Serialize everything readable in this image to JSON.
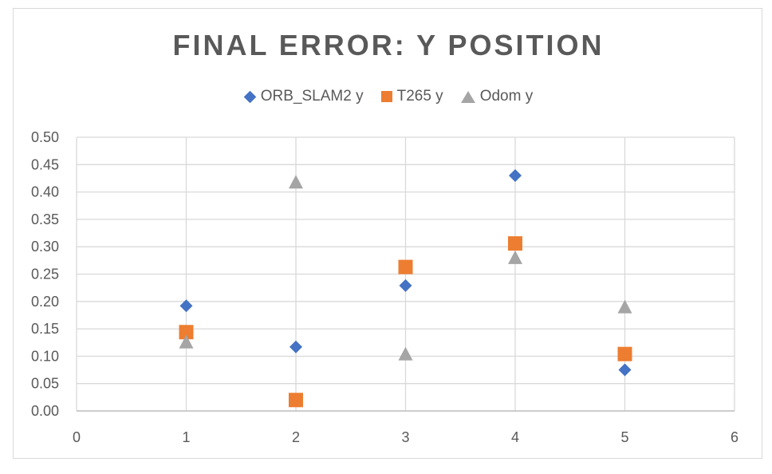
{
  "chart_data": {
    "type": "scatter",
    "title": "FINAL ERROR: Y POSITION",
    "xlabel": "",
    "ylabel": "",
    "xlim": [
      0,
      6
    ],
    "ylim": [
      0,
      0.5
    ],
    "x_ticks": [
      "0",
      "1",
      "2",
      "3",
      "4",
      "5",
      "6"
    ],
    "y_ticks": [
      "0.00",
      "0.05",
      "0.10",
      "0.15",
      "0.20",
      "0.25",
      "0.30",
      "0.35",
      "0.40",
      "0.45",
      "0.50"
    ],
    "grid": true,
    "legend_position": "top",
    "series": [
      {
        "name": "ORB_SLAM2 y",
        "marker": "diamond",
        "color": "#4472c4",
        "x": [
          1,
          2,
          3,
          4,
          5
        ],
        "y": [
          0.192,
          0.117,
          0.229,
          0.43,
          0.075
        ]
      },
      {
        "name": "T265 y",
        "marker": "square",
        "color": "#ed7d31",
        "x": [
          1,
          2,
          3,
          4,
          5
        ],
        "y": [
          0.144,
          0.02,
          0.263,
          0.306,
          0.104
        ]
      },
      {
        "name": "Odom y",
        "marker": "triangle",
        "color": "#a5a5a5",
        "x": [
          1,
          2,
          3,
          4,
          5
        ],
        "y": [
          0.126,
          0.418,
          0.104,
          0.28,
          0.19
        ]
      }
    ]
  }
}
